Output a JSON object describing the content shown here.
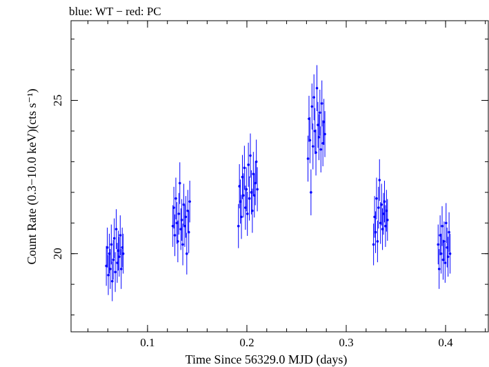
{
  "chart_data": {
    "type": "scatter",
    "title": "blue: WT − red: PC",
    "xlabel": "Time Since 56329.0 MJD (days)",
    "ylabel": "Count Rate (0.3−10.0 keV)(cts s⁻¹)",
    "xlim": [
      0.023,
      0.443
    ],
    "ylim": [
      17.45,
      27.6
    ],
    "x_ticks": [
      0.1,
      0.2,
      0.3,
      0.4
    ],
    "x_tick_labels": [
      "0.1",
      "0.2",
      "0.3",
      "0.4"
    ],
    "y_ticks": [
      20,
      25
    ],
    "y_tick_labels": [
      "20",
      "25"
    ],
    "x_minor_step": 0.02,
    "y_minor_step": 1,
    "grid": false,
    "series": [
      {
        "name": "WT",
        "color": "#0000ff",
        "points": [
          {
            "x": 0.0585,
            "y": 19.6,
            "e": 0.65
          },
          {
            "x": 0.0595,
            "y": 20.2,
            "e": 0.65
          },
          {
            "x": 0.0605,
            "y": 19.3,
            "e": 0.65
          },
          {
            "x": 0.0615,
            "y": 20.0,
            "e": 0.65
          },
          {
            "x": 0.0625,
            "y": 19.5,
            "e": 0.65
          },
          {
            "x": 0.0635,
            "y": 20.3,
            "e": 0.65
          },
          {
            "x": 0.0645,
            "y": 19.1,
            "e": 0.65
          },
          {
            "x": 0.0655,
            "y": 19.8,
            "e": 0.65
          },
          {
            "x": 0.0665,
            "y": 20.5,
            "e": 0.65
          },
          {
            "x": 0.0675,
            "y": 19.4,
            "e": 0.65
          },
          {
            "x": 0.0685,
            "y": 20.8,
            "e": 0.65
          },
          {
            "x": 0.0695,
            "y": 19.7,
            "e": 0.65
          },
          {
            "x": 0.0705,
            "y": 20.1,
            "e": 0.65
          },
          {
            "x": 0.0715,
            "y": 19.9,
            "e": 0.65
          },
          {
            "x": 0.0725,
            "y": 20.6,
            "e": 0.65
          },
          {
            "x": 0.0735,
            "y": 19.5,
            "e": 0.65
          },
          {
            "x": 0.0745,
            "y": 20.2,
            "e": 0.65
          },
          {
            "x": 0.0755,
            "y": 20.0,
            "e": 0.65
          },
          {
            "x": 0.1255,
            "y": 20.9,
            "e": 0.68
          },
          {
            "x": 0.1265,
            "y": 21.5,
            "e": 0.68
          },
          {
            "x": 0.1275,
            "y": 20.6,
            "e": 0.68
          },
          {
            "x": 0.1285,
            "y": 21.8,
            "e": 0.68
          },
          {
            "x": 0.1295,
            "y": 21.0,
            "e": 0.68
          },
          {
            "x": 0.1305,
            "y": 20.4,
            "e": 0.68
          },
          {
            "x": 0.1315,
            "y": 21.3,
            "e": 0.68
          },
          {
            "x": 0.1325,
            "y": 22.3,
            "e": 0.68
          },
          {
            "x": 0.1335,
            "y": 20.8,
            "e": 0.68
          },
          {
            "x": 0.1345,
            "y": 21.1,
            "e": 0.68
          },
          {
            "x": 0.1355,
            "y": 20.3,
            "e": 0.68
          },
          {
            "x": 0.1365,
            "y": 21.6,
            "e": 0.68
          },
          {
            "x": 0.1375,
            "y": 20.9,
            "e": 0.68
          },
          {
            "x": 0.1385,
            "y": 21.2,
            "e": 0.68
          },
          {
            "x": 0.1395,
            "y": 20.0,
            "e": 0.68
          },
          {
            "x": 0.1405,
            "y": 21.4,
            "e": 0.68
          },
          {
            "x": 0.1415,
            "y": 20.7,
            "e": 0.68
          },
          {
            "x": 0.1425,
            "y": 21.7,
            "e": 0.68
          },
          {
            "x": 0.1915,
            "y": 20.9,
            "e": 0.72
          },
          {
            "x": 0.1925,
            "y": 22.2,
            "e": 0.72
          },
          {
            "x": 0.1935,
            "y": 21.7,
            "e": 0.72
          },
          {
            "x": 0.1945,
            "y": 21.2,
            "e": 0.72
          },
          {
            "x": 0.1955,
            "y": 22.5,
            "e": 0.72
          },
          {
            "x": 0.1965,
            "y": 21.9,
            "e": 0.72
          },
          {
            "x": 0.1975,
            "y": 22.8,
            "e": 0.72
          },
          {
            "x": 0.1985,
            "y": 21.5,
            "e": 0.72
          },
          {
            "x": 0.1995,
            "y": 22.1,
            "e": 0.72
          },
          {
            "x": 0.2005,
            "y": 21.3,
            "e": 0.72
          },
          {
            "x": 0.2015,
            "y": 22.9,
            "e": 0.72
          },
          {
            "x": 0.2025,
            "y": 21.8,
            "e": 0.72
          },
          {
            "x": 0.2035,
            "y": 23.2,
            "e": 0.72
          },
          {
            "x": 0.2045,
            "y": 22.0,
            "e": 0.72
          },
          {
            "x": 0.2055,
            "y": 21.4,
            "e": 0.72
          },
          {
            "x": 0.2065,
            "y": 22.6,
            "e": 0.72
          },
          {
            "x": 0.2075,
            "y": 21.9,
            "e": 0.72
          },
          {
            "x": 0.2085,
            "y": 22.3,
            "e": 0.72
          },
          {
            "x": 0.2095,
            "y": 23.0,
            "e": 0.72
          },
          {
            "x": 0.2105,
            "y": 22.1,
            "e": 0.72
          },
          {
            "x": 0.2615,
            "y": 23.1,
            "e": 0.75
          },
          {
            "x": 0.2625,
            "y": 24.4,
            "e": 0.75
          },
          {
            "x": 0.2635,
            "y": 23.7,
            "e": 0.75
          },
          {
            "x": 0.2645,
            "y": 22.0,
            "e": 0.75
          },
          {
            "x": 0.2655,
            "y": 24.8,
            "e": 0.75
          },
          {
            "x": 0.2665,
            "y": 23.5,
            "e": 0.75
          },
          {
            "x": 0.2675,
            "y": 25.1,
            "e": 0.75
          },
          {
            "x": 0.2685,
            "y": 24.0,
            "e": 0.75
          },
          {
            "x": 0.2695,
            "y": 23.3,
            "e": 0.75
          },
          {
            "x": 0.2705,
            "y": 25.4,
            "e": 0.75
          },
          {
            "x": 0.2715,
            "y": 24.2,
            "e": 0.75
          },
          {
            "x": 0.2725,
            "y": 23.8,
            "e": 0.75
          },
          {
            "x": 0.2735,
            "y": 24.6,
            "e": 0.75
          },
          {
            "x": 0.2745,
            "y": 23.4,
            "e": 0.75
          },
          {
            "x": 0.2755,
            "y": 24.9,
            "e": 0.75
          },
          {
            "x": 0.2765,
            "y": 23.6,
            "e": 0.75
          },
          {
            "x": 0.2775,
            "y": 24.3,
            "e": 0.75
          },
          {
            "x": 0.2785,
            "y": 23.9,
            "e": 0.75
          },
          {
            "x": 0.3275,
            "y": 20.3,
            "e": 0.68
          },
          {
            "x": 0.3285,
            "y": 21.2,
            "e": 0.68
          },
          {
            "x": 0.3295,
            "y": 20.7,
            "e": 0.68
          },
          {
            "x": 0.3305,
            "y": 21.8,
            "e": 0.68
          },
          {
            "x": 0.3315,
            "y": 20.4,
            "e": 0.68
          },
          {
            "x": 0.3325,
            "y": 21.5,
            "e": 0.68
          },
          {
            "x": 0.3335,
            "y": 22.4,
            "e": 0.68
          },
          {
            "x": 0.3345,
            "y": 21.0,
            "e": 0.68
          },
          {
            "x": 0.3355,
            "y": 21.6,
            "e": 0.68
          },
          {
            "x": 0.3365,
            "y": 20.8,
            "e": 0.68
          },
          {
            "x": 0.3375,
            "y": 21.3,
            "e": 0.68
          },
          {
            "x": 0.3385,
            "y": 21.7,
            "e": 0.68
          },
          {
            "x": 0.3395,
            "y": 20.9,
            "e": 0.68
          },
          {
            "x": 0.3405,
            "y": 21.4,
            "e": 0.68
          },
          {
            "x": 0.3415,
            "y": 21.1,
            "e": 0.68
          },
          {
            "x": 0.3925,
            "y": 20.3,
            "e": 0.65
          },
          {
            "x": 0.3935,
            "y": 19.5,
            "e": 0.65
          },
          {
            "x": 0.3945,
            "y": 20.6,
            "e": 0.65
          },
          {
            "x": 0.3955,
            "y": 20.0,
            "e": 0.65
          },
          {
            "x": 0.3965,
            "y": 20.9,
            "e": 0.65
          },
          {
            "x": 0.3975,
            "y": 19.8,
            "e": 0.65
          },
          {
            "x": 0.3985,
            "y": 20.4,
            "e": 0.65
          },
          {
            "x": 0.3995,
            "y": 19.7,
            "e": 0.65
          },
          {
            "x": 0.4005,
            "y": 21.0,
            "e": 0.65
          },
          {
            "x": 0.4015,
            "y": 20.2,
            "e": 0.65
          },
          {
            "x": 0.4025,
            "y": 19.9,
            "e": 0.65
          },
          {
            "x": 0.4035,
            "y": 20.7,
            "e": 0.65
          },
          {
            "x": 0.4045,
            "y": 20.0,
            "e": 0.65
          }
        ]
      }
    ]
  }
}
